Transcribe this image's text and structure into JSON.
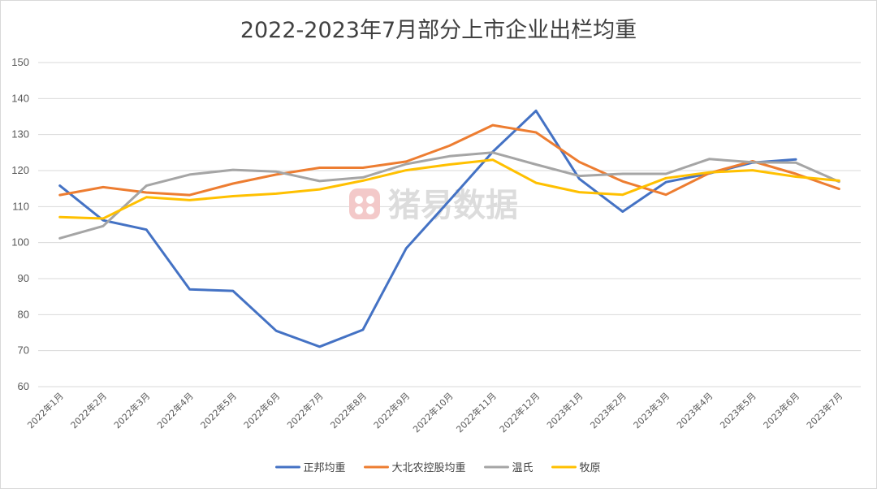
{
  "chart_data": {
    "type": "line",
    "title": "2022-2023年7月部分上市企业出栏均重",
    "xlabel": "",
    "ylabel": "",
    "ylim": [
      60,
      150
    ],
    "yticks": [
      60,
      70,
      80,
      90,
      100,
      110,
      120,
      130,
      140,
      150
    ],
    "grid": true,
    "legend_position": "bottom",
    "categories": [
      "2022年1月",
      "2022年2月",
      "2022年3月",
      "2022年4月",
      "2022年5月",
      "2022年6月",
      "2022年7月",
      "2022年8月",
      "2022年9月",
      "2022年10月",
      "2022年11月",
      "2022年12月",
      "2023年1月",
      "2023年2月",
      "2023年3月",
      "2023年4月",
      "2023年5月",
      "2023年6月",
      "2023年7月"
    ],
    "series": [
      {
        "name": "正邦均重",
        "color": "#4472C4",
        "values": [
          115.8,
          106.2,
          103.6,
          87.0,
          86.6,
          75.5,
          71.1,
          75.8,
          98.4,
          111.7,
          125.2,
          136.6,
          117.7,
          108.6,
          116.8,
          119.2,
          122.2,
          123.1,
          null
        ]
      },
      {
        "name": "大北农控股均重",
        "color": "#ED7D31",
        "values": [
          113.2,
          115.4,
          113.9,
          113.2,
          116.4,
          118.9,
          120.8,
          120.8,
          122.5,
          126.9,
          132.6,
          130.6,
          122.4,
          117.0,
          113.3,
          119.3,
          122.6,
          119.1,
          114.9
        ]
      },
      {
        "name": "温氏",
        "color": "#A5A5A5",
        "values": [
          101.2,
          104.6,
          115.8,
          118.9,
          120.2,
          119.7,
          117.1,
          118.1,
          121.8,
          124.0,
          125.0,
          121.7,
          118.5,
          119.1,
          119.1,
          123.2,
          122.3,
          122.2,
          116.9
        ]
      },
      {
        "name": "牧原",
        "color": "#FFC000",
        "values": [
          107.1,
          106.7,
          112.6,
          111.8,
          112.9,
          113.6,
          114.8,
          117.2,
          120.1,
          121.7,
          123.0,
          116.6,
          114.0,
          113.3,
          117.9,
          119.5,
          120.1,
          118.3,
          117.2
        ]
      }
    ],
    "watermark": "猪易数据"
  }
}
